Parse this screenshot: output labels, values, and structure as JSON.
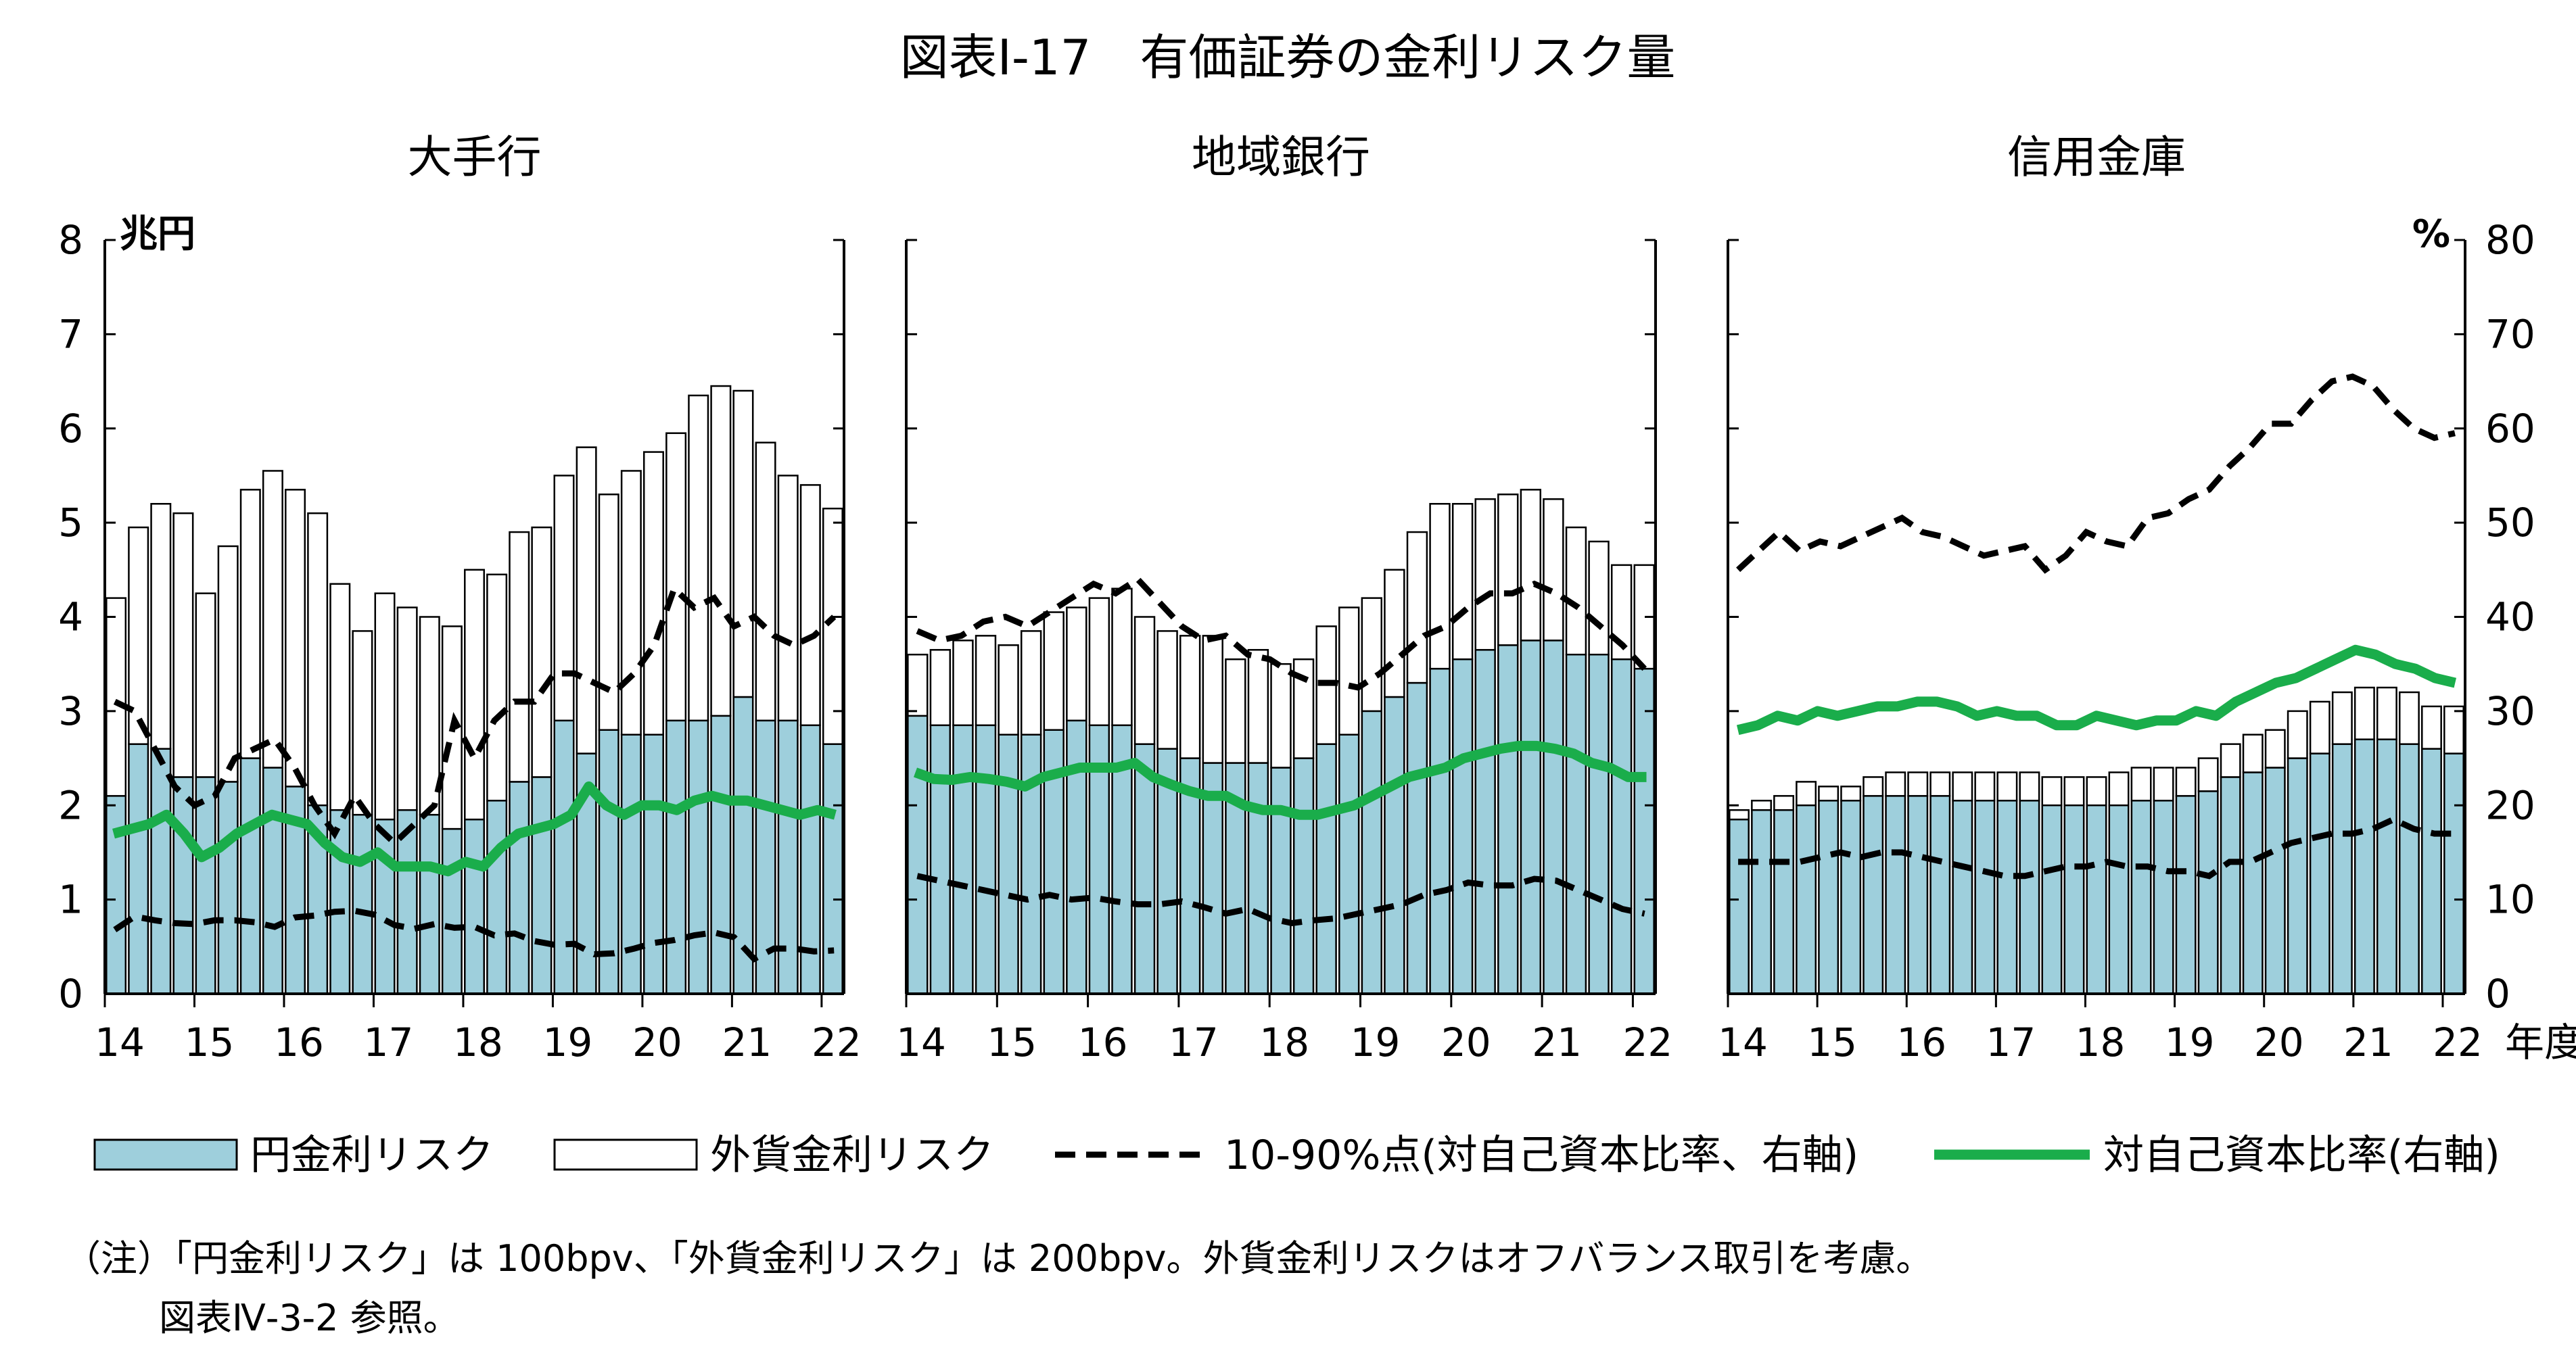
{
  "title": "図表Ⅰ-17　有価証券の金利リスク量",
  "legend": [
    {
      "label": "円金利リスク",
      "kind": "bar",
      "color": "#9ecfdc"
    },
    {
      "label": "外貨金利リスク",
      "kind": "bar",
      "color": "#ffffff"
    },
    {
      "label": "10-90%点(対自己資本比率、右軸)",
      "kind": "dashed",
      "color": "#000000"
    },
    {
      "label": "対自己資本比率(右軸)",
      "kind": "line",
      "color": "#1aad4b"
    }
  ],
  "note_line1": "（注）「円金利リスク」は 100bpv、「外貨金利リスク」は 200bpv。外貨金利リスクはオフバランス取引を考慮。",
  "note_line2": "図表Ⅳ-3-2 参照。",
  "chart_data": [
    {
      "type": "bar",
      "title": "大手行",
      "left_unit": "兆円",
      "right_unit": "",
      "ylim": [
        0,
        8
      ],
      "y2lim": [
        0,
        80
      ],
      "left_ticks": [
        "0",
        "1",
        "2",
        "3",
        "4",
        "5",
        "6",
        "7",
        "8"
      ],
      "right_ticks": [],
      "x_tick_labels": [
        "14",
        "15",
        "16",
        "17",
        "18",
        "19",
        "20",
        "21",
        "22"
      ],
      "x_suffix": "",
      "series": [
        {
          "name": "円金利リスク",
          "values": [
            2.1,
            2.65,
            2.6,
            2.3,
            2.3,
            2.25,
            2.5,
            2.4,
            2.2,
            2.0,
            1.95,
            1.9,
            1.85,
            1.95,
            1.9,
            1.75,
            1.85,
            2.05,
            2.25,
            2.3,
            2.9,
            2.55,
            2.8,
            2.75,
            2.75,
            2.9,
            2.9,
            2.95,
            3.15,
            2.9,
            2.9,
            2.85,
            2.65
          ]
        },
        {
          "name": "外貨金利リスク",
          "values": [
            2.1,
            2.3,
            2.6,
            2.8,
            1.95,
            2.5,
            2.85,
            3.15,
            3.15,
            3.1,
            2.4,
            1.95,
            2.4,
            2.15,
            2.1,
            2.15,
            2.65,
            2.4,
            2.65,
            2.65,
            2.6,
            3.25,
            2.5,
            2.8,
            3.0,
            3.05,
            3.45,
            3.5,
            3.25,
            2.95,
            2.6,
            2.55,
            2.5
          ]
        },
        {
          "name": "10-90%点(対自己資本比率、右軸)",
          "values": [
            31,
            30,
            26,
            22,
            20,
            21,
            25,
            26,
            27,
            24,
            20,
            17,
            21,
            18,
            16,
            18,
            20,
            29,
            25,
            29,
            31,
            31,
            34,
            34,
            33,
            32,
            34,
            37,
            43,
            41,
            42,
            39,
            40,
            38,
            37,
            38,
            40
          ]
        },
        {
          "name": "10-90%点(対自己資本比率、右軸)",
          "values": [
            6.8,
            8.2,
            7.8,
            7.5,
            7.4,
            7.8,
            7.8,
            7.6,
            7.1,
            8.1,
            8.3,
            8.7,
            8.8,
            8.4,
            7.3,
            6.9,
            7.4,
            7.0,
            7.1,
            6.2,
            6.4,
            5.6,
            5.2,
            5.3,
            4.2,
            4.3,
            4.8,
            5.4,
            5.7,
            6.2,
            6.5,
            6.0,
            3.7,
            4.8,
            4.8,
            4.5,
            4.6
          ]
        },
        {
          "name": "対自己資本比率(右軸)",
          "values": [
            17,
            17.5,
            18,
            19,
            17,
            14.5,
            15.5,
            17,
            18,
            19,
            18.5,
            18,
            16,
            14.5,
            14,
            15,
            13.5,
            13.5,
            13.5,
            13,
            14,
            13.5,
            15.5,
            17,
            17.5,
            18,
            19,
            22,
            20,
            19,
            20,
            20,
            19.5,
            20.5,
            21,
            20.5,
            20.5,
            20,
            19.5,
            19,
            19.5,
            19
          ]
        }
      ]
    },
    {
      "type": "bar",
      "title": "地域銀行",
      "left_unit": "",
      "right_unit": "",
      "ylim": [
        0,
        8
      ],
      "y2lim": [
        0,
        80
      ],
      "left_ticks": [],
      "right_ticks": [],
      "x_tick_labels": [
        "14",
        "15",
        "16",
        "17",
        "18",
        "19",
        "20",
        "21",
        "22"
      ],
      "x_suffix": "",
      "series": [
        {
          "name": "円金利リスク",
          "values": [
            2.95,
            2.85,
            2.85,
            2.85,
            2.75,
            2.75,
            2.8,
            2.9,
            2.85,
            2.85,
            2.65,
            2.6,
            2.5,
            2.45,
            2.45,
            2.45,
            2.4,
            2.5,
            2.65,
            2.75,
            3.0,
            3.15,
            3.3,
            3.45,
            3.55,
            3.65,
            3.7,
            3.75,
            3.75,
            3.6,
            3.6,
            3.55,
            3.45
          ]
        },
        {
          "name": "外貨金利リスク",
          "values": [
            0.65,
            0.8,
            0.9,
            0.95,
            0.95,
            1.1,
            1.25,
            1.2,
            1.35,
            1.45,
            1.35,
            1.25,
            1.3,
            1.35,
            1.1,
            1.2,
            1.1,
            1.05,
            1.25,
            1.35,
            1.2,
            1.35,
            1.6,
            1.75,
            1.65,
            1.6,
            1.6,
            1.6,
            1.5,
            1.35,
            1.2,
            1.0,
            1.1
          ]
        },
        {
          "name": "10-90%点(対自己資本比率、右軸)",
          "values": [
            38.5,
            37.5,
            38,
            39.5,
            40,
            39,
            40.5,
            42,
            43.5,
            42.5,
            44,
            41.5,
            39,
            37.5,
            38,
            36,
            35.5,
            34,
            33,
            33,
            32.5,
            34,
            36,
            38,
            39,
            41,
            42.5,
            42.5,
            43.5,
            42.5,
            41,
            39,
            37,
            34.5
          ]
        },
        {
          "name": "10-90%点(対自己資本比率、右軸)",
          "values": [
            12.5,
            12,
            11.5,
            11,
            10.5,
            10,
            10.5,
            10,
            10.2,
            9.8,
            9.5,
            9.5,
            9.8,
            9.2,
            8.5,
            9,
            8,
            7.5,
            7.8,
            8,
            8.5,
            9,
            9.5,
            10.5,
            11,
            11.8,
            11.5,
            11.5,
            12.2,
            12,
            11,
            10,
            9,
            8.5
          ]
        },
        {
          "name": "対自己資本比率(右軸)",
          "values": [
            23.5,
            22.8,
            22.7,
            23,
            22.8,
            22.5,
            22,
            23,
            23.5,
            24,
            24,
            24,
            24.5,
            23,
            22.2,
            21.5,
            21,
            21,
            20,
            19.5,
            19.5,
            19,
            19,
            19.5,
            20,
            21,
            22,
            23,
            23.5,
            24,
            25,
            25.5,
            26,
            26.3,
            26.3,
            26,
            25.5,
            24.5,
            24,
            23,
            23
          ]
        }
      ]
    },
    {
      "type": "bar",
      "title": "信用金庫",
      "left_unit": "",
      "right_unit": "%",
      "ylim": [
        0,
        8
      ],
      "y2lim": [
        0,
        80
      ],
      "left_ticks": [],
      "right_ticks": [
        "0",
        "10",
        "20",
        "30",
        "40",
        "50",
        "60",
        "70",
        "80"
      ],
      "x_tick_labels": [
        "14",
        "15",
        "16",
        "17",
        "18",
        "19",
        "20",
        "21",
        "22"
      ],
      "x_suffix": "年度",
      "series": [
        {
          "name": "円金利リスク",
          "values": [
            1.85,
            1.95,
            1.95,
            2.0,
            2.05,
            2.05,
            2.1,
            2.1,
            2.1,
            2.1,
            2.05,
            2.05,
            2.05,
            2.05,
            2.0,
            2.0,
            2.0,
            2.0,
            2.05,
            2.05,
            2.1,
            2.15,
            2.3,
            2.35,
            2.4,
            2.5,
            2.55,
            2.65,
            2.7,
            2.7,
            2.65,
            2.6,
            2.55
          ]
        },
        {
          "name": "外貨金利リスク",
          "values": [
            0.1,
            0.1,
            0.15,
            0.25,
            0.15,
            0.15,
            0.2,
            0.25,
            0.25,
            0.25,
            0.3,
            0.3,
            0.3,
            0.3,
            0.3,
            0.3,
            0.3,
            0.35,
            0.35,
            0.35,
            0.3,
            0.35,
            0.35,
            0.4,
            0.4,
            0.5,
            0.55,
            0.55,
            0.55,
            0.55,
            0.55,
            0.45,
            0.5
          ]
        },
        {
          "name": "10-90%点(対自己資本比率、右軸)",
          "values": [
            45,
            47,
            49,
            47,
            48,
            47.5,
            48.5,
            49.5,
            50.5,
            49,
            48.5,
            47.5,
            46.5,
            47,
            47.5,
            45,
            46.5,
            49,
            48,
            47.5,
            50.5,
            51,
            52.5,
            53.5,
            56,
            58,
            60.5,
            60.5,
            63,
            65,
            65.5,
            64.5,
            62,
            60,
            59,
            59.5
          ]
        },
        {
          "name": "10-90%点(対自己資本比率、右軸)",
          "values": [
            14,
            14,
            14,
            14,
            14.5,
            15,
            14.5,
            15,
            15,
            14.5,
            14,
            13.5,
            13,
            12.5,
            12.5,
            13,
            13.5,
            13.5,
            14,
            13.5,
            13.5,
            13,
            13,
            12.5,
            14,
            14,
            15,
            16,
            16.5,
            17,
            17,
            17.5,
            18.5,
            17.5,
            17,
            17
          ]
        },
        {
          "name": "対自己資本比率(右軸)",
          "values": [
            28,
            28.5,
            29.5,
            29,
            30,
            29.5,
            30,
            30.5,
            30.5,
            31,
            31,
            30.5,
            29.5,
            30,
            29.5,
            29.5,
            28.5,
            28.5,
            29.5,
            29,
            28.5,
            29,
            29,
            30,
            29.5,
            31,
            32,
            33,
            33.5,
            34.5,
            35.5,
            36.5,
            36,
            35,
            34.5,
            33.5,
            33
          ]
        }
      ]
    }
  ]
}
